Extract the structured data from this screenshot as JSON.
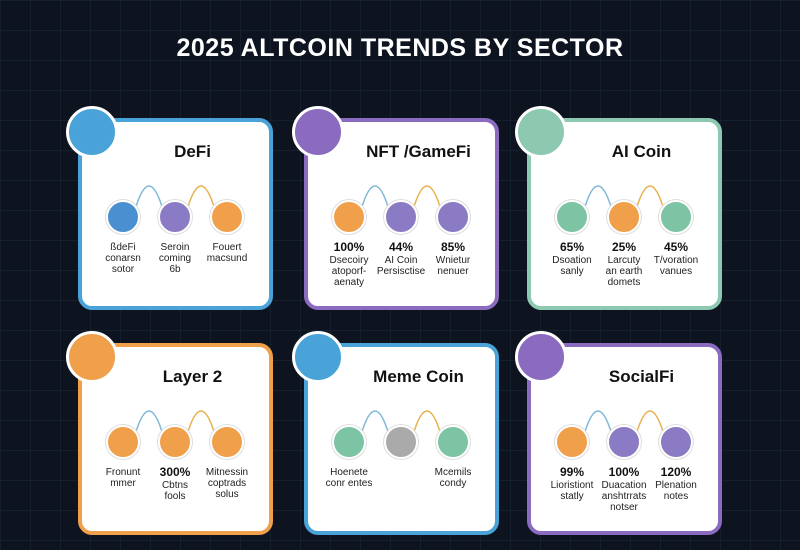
{
  "header": {
    "title": "2025 ALTCOIN TRENDS BY SECTOR"
  },
  "cards": [
    {
      "title": "DeFi",
      "color": "#4aa3d8",
      "items": [
        {
          "color": "#4a90d0",
          "label": [
            "ßdeFi",
            "conarsn",
            "sotor"
          ]
        },
        {
          "color": "#8b7bc4",
          "label": [
            "Seroin",
            "coming",
            "6b"
          ]
        },
        {
          "color": "#f0a04a",
          "label": [
            "Fouert",
            "macsund"
          ]
        }
      ]
    },
    {
      "title": "NFT /GameFi",
      "color": "#8a6bbf",
      "items": [
        {
          "color": "#f0a04a",
          "value": "100%",
          "label": [
            "Dsecoiry",
            "atoporf-",
            "aenaty"
          ]
        },
        {
          "color": "#8b7bc4",
          "value": "44%",
          "label": [
            "AI Coin",
            "Persisctise"
          ]
        },
        {
          "color": "#8b7bc4",
          "value": "85%",
          "label": [
            "Wnietur",
            "nenuer"
          ]
        }
      ]
    },
    {
      "title": "AI Coin",
      "color": "#8cc9b0",
      "items": [
        {
          "color": "#7cc4a4",
          "value": "65%",
          "label": [
            "Dsoation",
            "sanly"
          ]
        },
        {
          "color": "#f0a04a",
          "value": "25%",
          "label": [
            "Larcuty",
            "an earth",
            "domets"
          ]
        },
        {
          "color": "#7cc4a4",
          "value": "45%",
          "label": [
            "T/voration",
            "vanues"
          ]
        }
      ]
    },
    {
      "title": "Layer 2",
      "color": "#f0a04a",
      "items": [
        {
          "color": "#f0a04a",
          "label": [
            "Fronunt",
            "mmer"
          ]
        },
        {
          "color": "#f0a04a",
          "value": "300%",
          "label": [
            "Cbtns",
            "fools"
          ]
        },
        {
          "color": "#f0a04a",
          "label": [
            "Mitnessin",
            "coptrads",
            "solus"
          ]
        }
      ]
    },
    {
      "title": "Meme Coin",
      "color": "#4aa3d8",
      "items": [
        {
          "color": "#7cc4a4",
          "label": [
            "Hoenete",
            "conr entes"
          ]
        },
        {
          "color": "#aaaaaa",
          "label": []
        },
        {
          "color": "#7cc4a4",
          "label": [
            "Mcemils",
            "condy"
          ]
        }
      ]
    },
    {
      "title": "SocialFi",
      "color": "#8a6bbf",
      "items": [
        {
          "color": "#f0a04a",
          "value": "99%",
          "label": [
            "Lioristiont",
            "statly"
          ]
        },
        {
          "color": "#8b7bc4",
          "value": "100%",
          "label": [
            "Duacation",
            "anshtrrats",
            "notser"
          ]
        },
        {
          "color": "#8b7bc4",
          "value": "120%",
          "label": [
            "Plenation",
            "notes"
          ]
        }
      ]
    }
  ]
}
